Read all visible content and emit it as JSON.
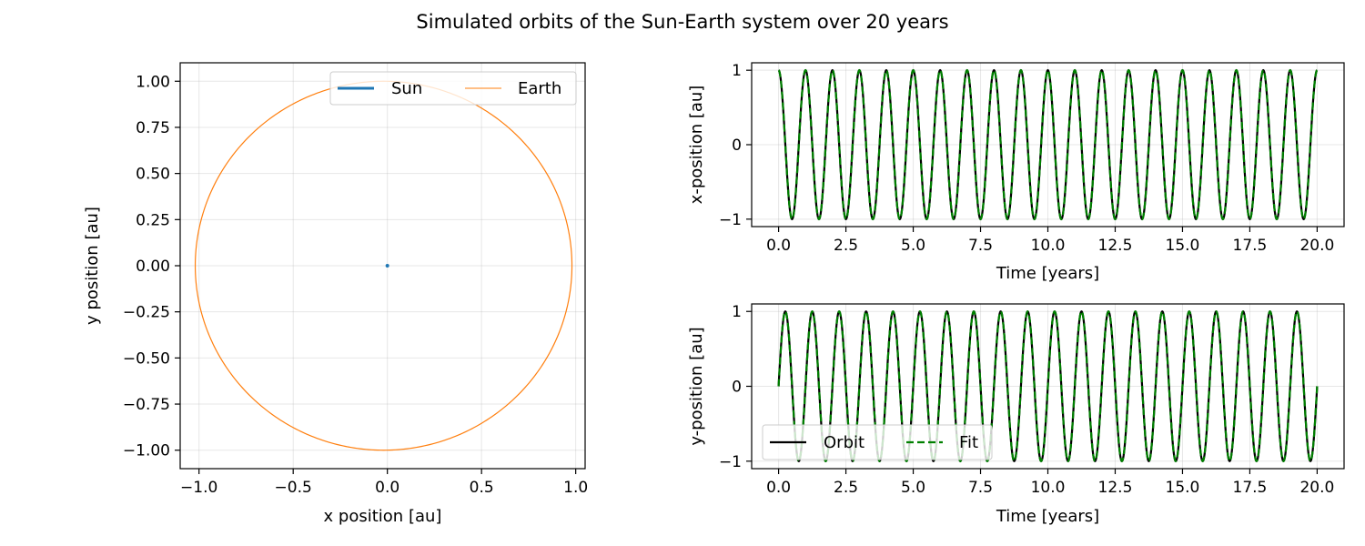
{
  "figure": {
    "title": "Simulated orbits of the Sun-Earth system over 20 years"
  },
  "chart_data": [
    {
      "type": "line",
      "name": "orbit-xy",
      "xlabel": "x position [au]",
      "ylabel": "y position [au]",
      "xlim": [
        -1.1,
        1.05
      ],
      "ylim": [
        -1.1,
        1.1
      ],
      "xticks": [
        -1.0,
        -0.5,
        0.0,
        0.5,
        1.0
      ],
      "xtick_labels": [
        "−1.0",
        "−0.5",
        "0.0",
        "0.5",
        "1.0"
      ],
      "yticks": [
        1.0,
        0.75,
        0.5,
        0.25,
        0.0,
        -0.25,
        -0.5,
        -0.75,
        -1.0
      ],
      "ytick_labels": [
        "1.00",
        "0.75",
        "0.50",
        "0.25",
        "0.00",
        "−0.25",
        "−0.50",
        "−0.75",
        "−1.00"
      ],
      "grid": true,
      "legend": {
        "placement": "upper-right",
        "columns": 2
      },
      "series": [
        {
          "name": "Sun",
          "color": "#1f77b4",
          "shape": "point",
          "x": [
            0.0
          ],
          "y": [
            0.0
          ]
        },
        {
          "name": "Earth",
          "color": "#ff7f0e",
          "shape": "circle",
          "center": [
            -0.02,
            0.0
          ],
          "radius": 1.0
        }
      ]
    },
    {
      "type": "line",
      "name": "x-vs-time",
      "xlabel": "Time [years]",
      "ylabel": "x-position [au]",
      "xlim": [
        -1.0,
        21.0
      ],
      "ylim": [
        -1.1,
        1.1
      ],
      "xticks": [
        0.0,
        2.5,
        5.0,
        7.5,
        10.0,
        12.5,
        15.0,
        17.5,
        20.0
      ],
      "xtick_labels": [
        "0.0",
        "2.5",
        "5.0",
        "7.5",
        "10.0",
        "12.5",
        "15.0",
        "17.5",
        "20.0"
      ],
      "yticks": [
        1,
        0,
        -1
      ],
      "ytick_labels": [
        "1",
        "0",
        "−1"
      ],
      "grid": true,
      "series": [
        {
          "name": "Orbit",
          "color": "#000000",
          "function": "cos",
          "amplitude": 1.0,
          "period_years": 1.0,
          "t_range": [
            0,
            20
          ]
        },
        {
          "name": "Fit",
          "color": "#008000",
          "function": "cos",
          "amplitude": 1.0,
          "period_years": 1.0,
          "t_range": [
            0,
            20
          ]
        }
      ]
    },
    {
      "type": "line",
      "name": "y-vs-time",
      "xlabel": "Time [years]",
      "ylabel": "y-position [au]",
      "xlim": [
        -1.0,
        21.0
      ],
      "ylim": [
        -1.1,
        1.1
      ],
      "xticks": [
        0.0,
        2.5,
        5.0,
        7.5,
        10.0,
        12.5,
        15.0,
        17.5,
        20.0
      ],
      "xtick_labels": [
        "0.0",
        "2.5",
        "5.0",
        "7.5",
        "10.0",
        "12.5",
        "15.0",
        "17.5",
        "20.0"
      ],
      "yticks": [
        1,
        0,
        -1
      ],
      "ytick_labels": [
        "1",
        "0",
        "−1"
      ],
      "grid": true,
      "legend": {
        "placement": "lower-left",
        "columns": 2
      },
      "series": [
        {
          "name": "Orbit",
          "color": "#000000",
          "function": "sin",
          "amplitude": 1.0,
          "period_years": 1.0,
          "t_range": [
            0,
            20
          ]
        },
        {
          "name": "Fit",
          "color": "#008000",
          "function": "sin",
          "amplitude": 1.0,
          "period_years": 1.0,
          "t_range": [
            0,
            20
          ]
        }
      ]
    }
  ]
}
